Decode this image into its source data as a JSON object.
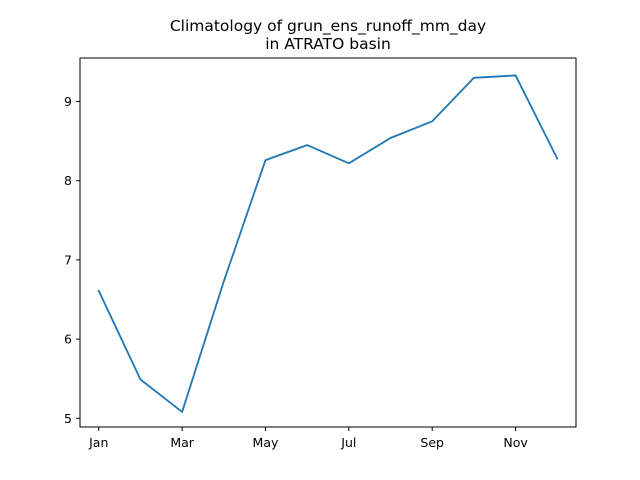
{
  "chart_data": {
    "type": "line",
    "title_line1": "Climatology of grun_ens_runoff_mm_day",
    "title_line2": "in ATRATO basin",
    "xlabel": "",
    "ylabel": "",
    "x": [
      1,
      2,
      3,
      4,
      5,
      6,
      7,
      8,
      9,
      10,
      11,
      12
    ],
    "x_ticks": [
      {
        "month": 1,
        "label": "Jan"
      },
      {
        "month": 3,
        "label": "Mar"
      },
      {
        "month": 5,
        "label": "May"
      },
      {
        "month": 7,
        "label": "Jul"
      },
      {
        "month": 9,
        "label": "Sep"
      },
      {
        "month": 11,
        "label": "Nov"
      }
    ],
    "y_ticks": [
      {
        "value": 5,
        "label": "5"
      },
      {
        "value": 6,
        "label": "6"
      },
      {
        "value": 7,
        "label": "7"
      },
      {
        "value": 8,
        "label": "8"
      },
      {
        "value": 9,
        "label": "9"
      }
    ],
    "xlim": [
      0.55,
      12.45
    ],
    "ylim": [
      4.89,
      9.55
    ],
    "series": [
      {
        "color": "#1f77b4",
        "values": [
          6.61,
          5.49,
          5.08,
          6.73,
          8.26,
          8.45,
          8.22,
          8.54,
          8.75,
          9.3,
          9.33,
          8.28
        ]
      }
    ],
    "grid": false,
    "legend": "none"
  }
}
